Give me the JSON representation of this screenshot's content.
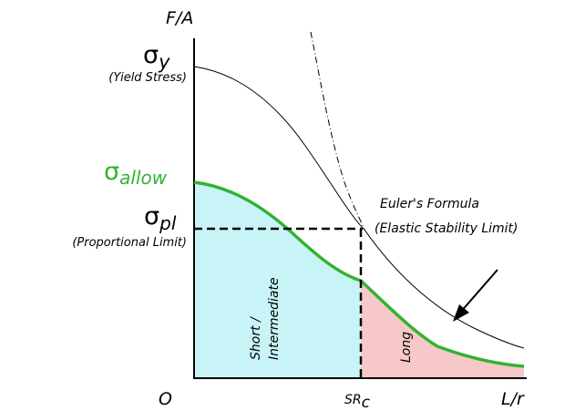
{
  "axes": {
    "y_label": "F/A",
    "x_label": "L/r",
    "origin_label": "O",
    "critical_ratio": {
      "main": "SR",
      "subscript": "c"
    }
  },
  "stress_labels": {
    "yield": {
      "symbol": "σ",
      "subscript": "y",
      "note": "(Yield Stress)"
    },
    "allow": {
      "symbol": "σ",
      "subscript": "allow"
    },
    "proportional": {
      "symbol": "σ",
      "subscript": "pl",
      "note": "(Proportional Limit)"
    }
  },
  "regions": {
    "short": {
      "line1": "Short /",
      "line2": "Intermediate"
    },
    "long": {
      "label": "Long"
    }
  },
  "euler": {
    "line1": "Euler's Formula",
    "line2": "(Elastic Stability Limit)"
  },
  "colors": {
    "allow_curve": "#33b233",
    "short_fill": "#c8f4f7",
    "long_fill": "#f7c8c8",
    "ink": "#000000"
  }
}
